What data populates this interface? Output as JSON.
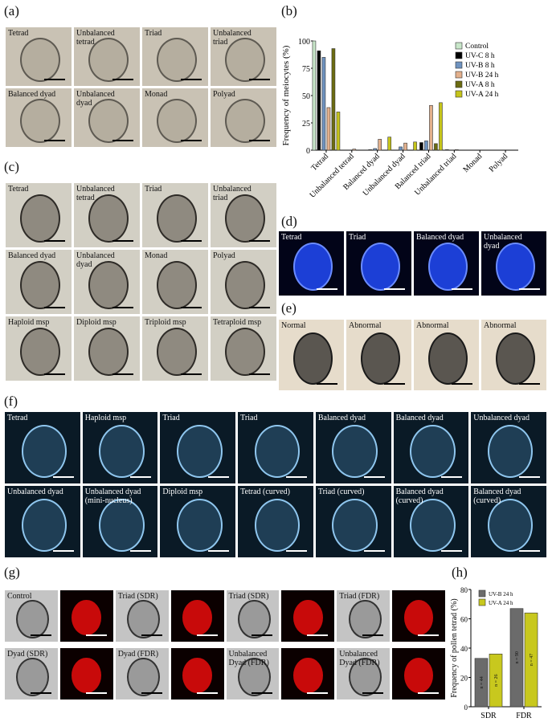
{
  "panels": {
    "a": "(a)",
    "b": "(b)",
    "c": "(c)",
    "d": "(d)",
    "e": "(e)",
    "f": "(f)",
    "g": "(g)",
    "h": "(h)"
  },
  "a_cells": [
    "Tetrad",
    "Unbalanced\ntetrad",
    "Triad",
    "Unbalanced\ntriad",
    "Balanced dyad",
    "Unbalanced\ndyad",
    "Monad",
    "Polyad"
  ],
  "c_cells": [
    "Tetrad",
    "Unbalanced\ntetrad",
    "Triad",
    "Unbalanced\ntriad",
    "Balanced dyad",
    "Unbalanced\ndyad",
    "Monad",
    "Polyad",
    "Haploid msp",
    "Diploid msp",
    "Triploid msp",
    "Tetraploid msp"
  ],
  "d_cells": [
    "Tetrad",
    "Triad",
    "Balanced dyad",
    "Unbalanced\ndyad"
  ],
  "e_cells": [
    "Normal",
    "Abnormal",
    "Abnormal",
    "Abnormal"
  ],
  "f_cells": [
    "Tetrad",
    "Haploid msp",
    "Triad",
    "Triad",
    "Balanced dyad",
    "Balanced dyad",
    "Unbalanced dyad",
    "Unbalanced dyad",
    "Unbalanced dyad\n(mini-nucleus)",
    "Diploid msp",
    "Tetrad (curved)",
    "Triad (curved)",
    "Balanced dyad\n(curved)",
    "Balanced dyad\n(curved)"
  ],
  "g_cells": [
    "Control",
    "Triad (SDR)",
    "Triad (SDR)",
    "Triad (FDR)",
    "Dyad (SDR)",
    "Dyad (FDR)",
    "Unbalanced\nDyad (FDR)",
    "Unbalanced\nDyad (FDR)"
  ],
  "chart_data": [
    {
      "type": "bar",
      "ylabel": "Frequency of meiocytes (%)",
      "ylim": [
        0,
        100
      ],
      "yticks": [
        0,
        25,
        50,
        75,
        100
      ],
      "categories": [
        "Tetrad",
        "Unbalanced tetrad",
        "Balanced dyad",
        "Unbalanced dyad",
        "Balanced triad",
        "Unbalanced triad",
        "Monad",
        "Polyad"
      ],
      "legend": "top-right",
      "series": [
        {
          "name": "Control",
          "color": "#c8e6c9",
          "values": [
            100,
            0,
            0,
            0,
            0,
            0,
            0,
            0
          ]
        },
        {
          "name": "UV-C 8 h",
          "color": "#000000",
          "values": [
            91,
            0,
            0.5,
            0,
            7,
            0.5,
            0,
            0
          ]
        },
        {
          "name": "UV-B 8 h",
          "color": "#6f93c0",
          "values": [
            85,
            0,
            1.5,
            3,
            8.5,
            0,
            0,
            0
          ]
        },
        {
          "name": "UV-B 24 h",
          "color": "#e3b08c",
          "values": [
            39,
            1,
            10,
            6.5,
            41,
            0.5,
            0,
            0
          ]
        },
        {
          "name": "UV-A 8 h",
          "color": "#6b6b10",
          "values": [
            93,
            0,
            0,
            0,
            6,
            0,
            0,
            0
          ]
        },
        {
          "name": "UV-A 24 h",
          "color": "#c5c41a",
          "values": [
            35,
            0,
            12,
            7.5,
            43.5,
            0,
            0,
            0
          ]
        }
      ]
    },
    {
      "type": "bar",
      "ylabel": "Frequency of pollen tetrad (%)",
      "ylim": [
        0,
        80
      ],
      "yticks": [
        0,
        20,
        40,
        60,
        80
      ],
      "categories": [
        "SDR",
        "FDR"
      ],
      "legend": "top-left",
      "series": [
        {
          "name": "UV-B 24 h",
          "color": "#6b6b6b",
          "values": [
            33,
            67
          ],
          "labels": [
            "n = 44",
            "n = 90"
          ]
        },
        {
          "name": "UV-A 24 h",
          "color": "#c8c81e",
          "values": [
            36,
            64
          ],
          "labels": [
            "n = 26",
            "n = 47"
          ]
        }
      ]
    }
  ]
}
